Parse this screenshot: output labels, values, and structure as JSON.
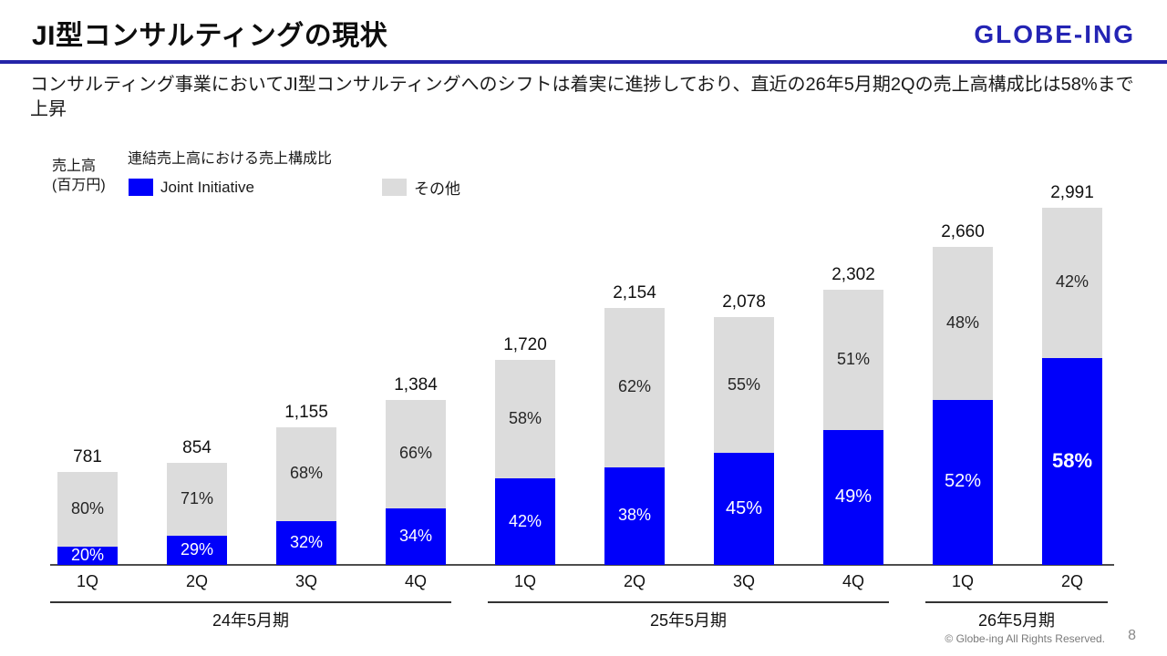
{
  "header": {
    "title": "JI型コンサルティングの現状",
    "logo": "GLOBE-ING"
  },
  "subtitle": "コンサルティング事業においてJI型コンサルティングへのシフトは着実に進捗しており、直近の26年5月期2Qの売上高構成比は58%まで上昇",
  "chart_data": {
    "type": "bar",
    "stacked": true,
    "title": "連結売上高における売上構成比",
    "ylabel_lines": [
      "売上高",
      "(百万円)"
    ],
    "unit": "百万円",
    "legend": [
      {
        "name": "Joint Initiative",
        "color": "#0000fa"
      },
      {
        "name": "その他",
        "color": "#dcdcdc"
      }
    ],
    "legend_position": "top-left",
    "categories": [
      "1Q",
      "2Q",
      "3Q",
      "4Q",
      "1Q",
      "2Q",
      "3Q",
      "4Q",
      "1Q",
      "2Q"
    ],
    "groups": [
      {
        "label": "24年5月期",
        "span": [
          0,
          3
        ]
      },
      {
        "label": "25年5月期",
        "span": [
          4,
          7
        ]
      },
      {
        "label": "26年5月期",
        "span": [
          8,
          9
        ]
      }
    ],
    "totals": [
      781,
      854,
      1155,
      1384,
      1720,
      2154,
      2078,
      2302,
      2660,
      2991
    ],
    "total_labels": [
      "781",
      "854",
      "1,155",
      "1,384",
      "1,720",
      "2,154",
      "2,078",
      "2,302",
      "2,660",
      "2,991"
    ],
    "series": [
      {
        "name": "Joint Initiative",
        "pct": [
          20,
          29,
          32,
          34,
          42,
          38,
          45,
          49,
          52,
          58
        ]
      },
      {
        "name": "その他",
        "pct": [
          80,
          71,
          68,
          66,
          58,
          62,
          55,
          51,
          48,
          42
        ]
      }
    ],
    "highlight_index": 9,
    "ylim": [
      0,
      2991
    ],
    "grid": false
  },
  "footer": {
    "copyright": "© Globe-ing All Rights Reserved.",
    "page": "8"
  },
  "colors": {
    "ji_blue": "#0000fa",
    "other_gray": "#dcdcdc",
    "accent_rule": "#2424a8",
    "logo_blue": "#2424b4",
    "label_dark": "#262626",
    "label_light": "#ffffff"
  }
}
